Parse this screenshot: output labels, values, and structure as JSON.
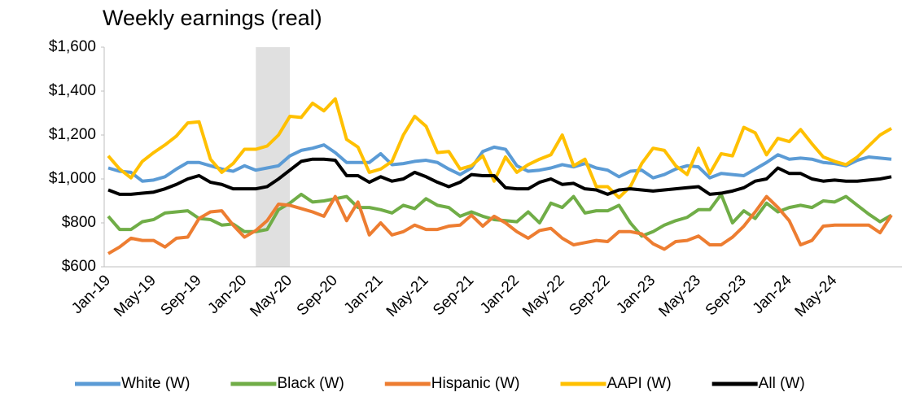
{
  "chart_data": {
    "type": "line",
    "title": "Weekly earnings (real)",
    "categories": [
      "Jan-19",
      null,
      null,
      null,
      "May-19",
      null,
      null,
      null,
      "Sep-19",
      null,
      null,
      null,
      "Jan-20",
      null,
      null,
      null,
      "May-20",
      null,
      null,
      null,
      "Sep-20",
      null,
      null,
      null,
      "Jan-21",
      null,
      null,
      null,
      "May-21",
      null,
      null,
      null,
      "Sep-21",
      null,
      null,
      null,
      "Jan-22",
      null,
      null,
      null,
      "May-22",
      null,
      null,
      null,
      "Sep-22",
      null,
      null,
      null,
      "Jan-23",
      null,
      null,
      null,
      "May-23",
      null,
      null,
      null,
      "Sep-23",
      null,
      null,
      null,
      "Jan-24",
      null,
      null,
      null,
      "May-24",
      null,
      null,
      null,
      null,
      null
    ],
    "series": [
      {
        "name": "White (W)",
        "color": "#5b9bd5",
        "values": [
          1050,
          1035,
          1030,
          990,
          995,
          1010,
          1045,
          1075,
          1075,
          1060,
          1045,
          1035,
          1060,
          1040,
          1050,
          1060,
          1105,
          1130,
          1140,
          1155,
          1120,
          1075,
          1075,
          1075,
          1115,
          1065,
          1070,
          1080,
          1085,
          1075,
          1045,
          1020,
          1050,
          1125,
          1145,
          1135,
          1060,
          1035,
          1040,
          1050,
          1065,
          1055,
          1070,
          1050,
          1040,
          1010,
          1035,
          1040,
          1005,
          1020,
          1045,
          1060,
          1055,
          1005,
          1025,
          1020,
          1015,
          1045,
          1075,
          1110,
          1090,
          1095,
          1090,
          1075,
          1070,
          1060,
          1085,
          1100,
          1095,
          1090
        ]
      },
      {
        "name": "Black (W)",
        "color": "#70ad47",
        "values": [
          830,
          770,
          770,
          805,
          815,
          845,
          850,
          855,
          820,
          815,
          790,
          795,
          760,
          760,
          770,
          860,
          890,
          930,
          895,
          900,
          910,
          920,
          870,
          870,
          860,
          845,
          880,
          865,
          910,
          880,
          870,
          830,
          850,
          830,
          815,
          810,
          805,
          850,
          800,
          890,
          870,
          920,
          845,
          855,
          855,
          880,
          800,
          740,
          760,
          790,
          810,
          825,
          860,
          860,
          930,
          800,
          855,
          820,
          890,
          850,
          870,
          880,
          870,
          900,
          895,
          920,
          880,
          840,
          805,
          835
        ]
      },
      {
        "name": "Hispanic (W)",
        "color": "#ed7d31",
        "values": [
          660,
          690,
          730,
          720,
          720,
          690,
          730,
          735,
          820,
          850,
          855,
          790,
          735,
          765,
          810,
          885,
          880,
          865,
          850,
          830,
          920,
          810,
          895,
          745,
          800,
          745,
          760,
          790,
          770,
          770,
          785,
          790,
          835,
          785,
          830,
          800,
          760,
          730,
          765,
          775,
          730,
          700,
          710,
          720,
          715,
          760,
          760,
          750,
          705,
          680,
          715,
          720,
          740,
          700,
          700,
          735,
          785,
          850,
          920,
          870,
          810,
          700,
          720,
          785,
          790,
          790,
          790,
          790,
          755,
          835
        ]
      },
      {
        "name": "AAPI (W)",
        "color": "#ffc000",
        "values": [
          1105,
          1045,
          1005,
          1080,
          1120,
          1155,
          1195,
          1255,
          1260,
          1090,
          1030,
          1070,
          1135,
          1135,
          1150,
          1200,
          1285,
          1280,
          1345,
          1310,
          1365,
          1180,
          1145,
          1030,
          1045,
          1080,
          1200,
          1285,
          1240,
          1120,
          1125,
          1045,
          1060,
          1105,
          990,
          1100,
          1030,
          1065,
          1090,
          1110,
          1200,
          1060,
          1090,
          965,
          965,
          915,
          965,
          1070,
          1140,
          1130,
          1060,
          1020,
          1140,
          1025,
          1115,
          1105,
          1235,
          1210,
          1110,
          1185,
          1170,
          1225,
          1160,
          1100,
          1080,
          1065,
          1100,
          1150,
          1200,
          1230
        ]
      },
      {
        "name": "All (W)",
        "color": "#000000",
        "values": [
          950,
          930,
          930,
          935,
          940,
          955,
          975,
          1000,
          1015,
          985,
          975,
          955,
          955,
          955,
          965,
          1000,
          1040,
          1080,
          1090,
          1090,
          1085,
          1015,
          1015,
          985,
          1010,
          990,
          1000,
          1030,
          1010,
          985,
          965,
          985,
          1020,
          1015,
          1015,
          960,
          955,
          955,
          985,
          1000,
          975,
          980,
          955,
          950,
          930,
          950,
          955,
          950,
          945,
          950,
          955,
          960,
          965,
          930,
          935,
          945,
          960,
          990,
          1000,
          1050,
          1025,
          1025,
          1000,
          990,
          995,
          990,
          990,
          995,
          1000,
          1010
        ]
      }
    ],
    "ylim": [
      600,
      1600
    ],
    "yticks": [
      {
        "value": 600,
        "label": "$600"
      },
      {
        "value": 800,
        "label": "$800"
      },
      {
        "value": 1000,
        "label": "$1,000"
      },
      {
        "value": 1200,
        "label": "$1,200"
      },
      {
        "value": 1400,
        "label": "$1,400"
      },
      {
        "value": 1600,
        "label": "$1,600"
      }
    ],
    "grid": false,
    "shaded_categories": [
      13,
      16
    ],
    "shade_color": "#e0e0e0",
    "legend": "bottom"
  }
}
